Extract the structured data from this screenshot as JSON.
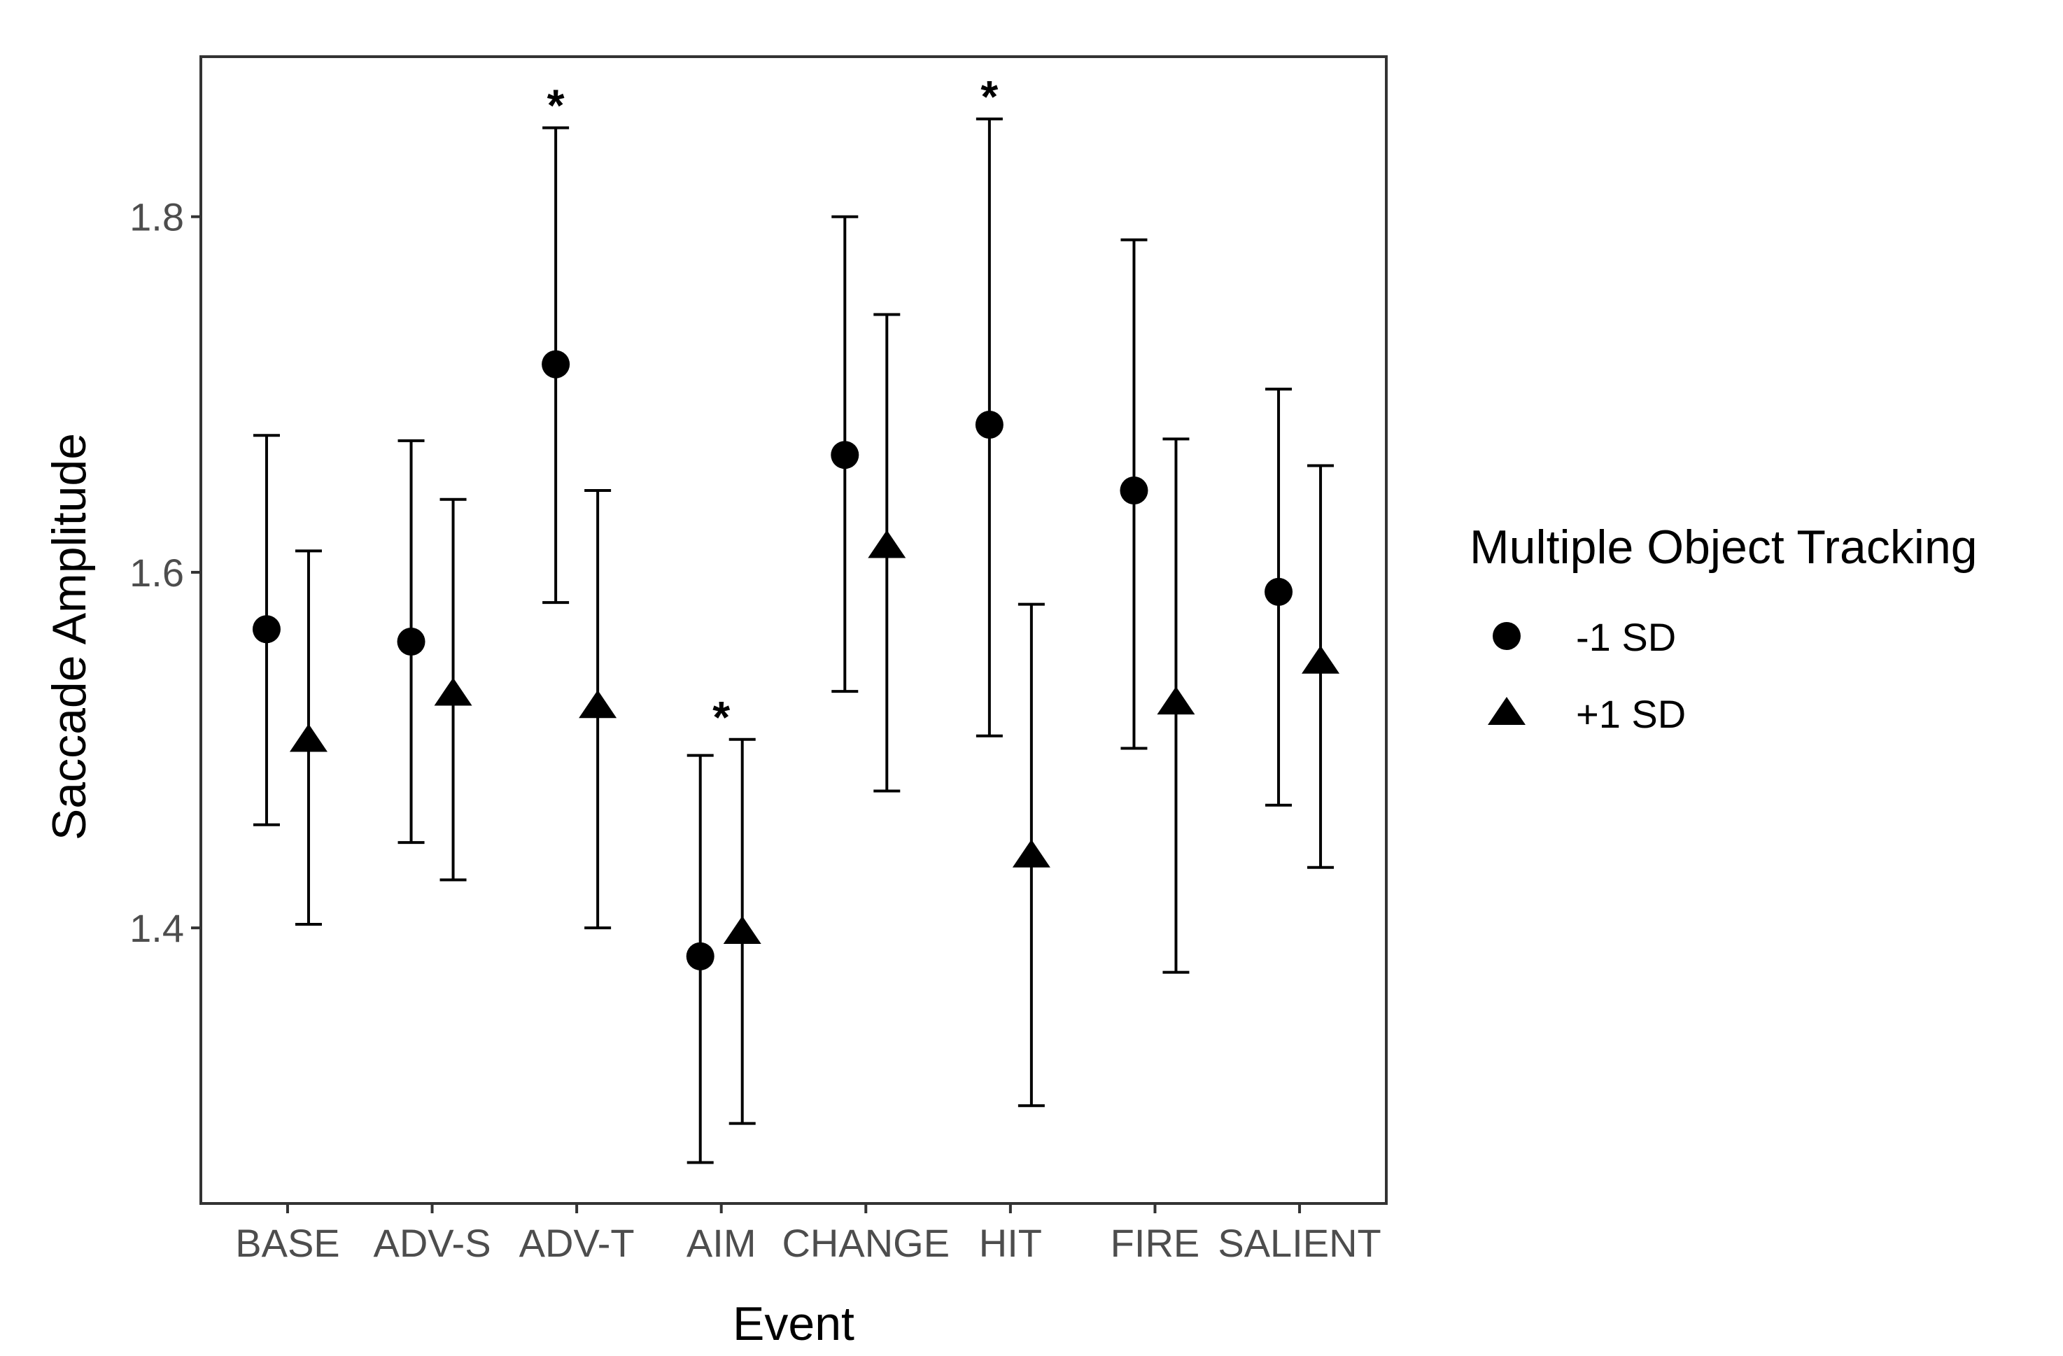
{
  "chart_data": {
    "type": "scatter",
    "subtype": "point-range (mean with error bars)",
    "xlabel": "Event",
    "ylabel": "Saccade Amplitude",
    "categories": [
      "BASE",
      "ADV-S",
      "ADV-T",
      "AIM",
      "CHANGE",
      "HIT",
      "FIRE",
      "SALIENT"
    ],
    "ylim": [
      1.245,
      1.89
    ],
    "yticks": [
      1.4,
      1.6,
      1.8
    ],
    "grid": false,
    "legend": {
      "title": "Multiple Object Tracking",
      "position": "right",
      "entries": [
        {
          "label": "-1 SD",
          "shape": "circle"
        },
        {
          "label": "+1 SD",
          "shape": "triangle"
        }
      ]
    },
    "series": [
      {
        "name": "-1 SD",
        "shape": "circle",
        "values": [
          1.568,
          1.561,
          1.717,
          1.384,
          1.666,
          1.683,
          1.646,
          1.589
        ],
        "lower": [
          1.458,
          1.448,
          1.583,
          1.268,
          1.533,
          1.508,
          1.501,
          1.469
        ],
        "upper": [
          1.677,
          1.674,
          1.85,
          1.497,
          1.8,
          1.855,
          1.787,
          1.703
        ]
      },
      {
        "name": "+1 SD",
        "shape": "triangle",
        "values": [
          1.505,
          1.531,
          1.524,
          1.397,
          1.614,
          1.44,
          1.526,
          1.549
        ],
        "lower": [
          1.402,
          1.427,
          1.4,
          1.29,
          1.477,
          1.3,
          1.375,
          1.434
        ],
        "upper": [
          1.612,
          1.641,
          1.646,
          1.506,
          1.745,
          1.582,
          1.675,
          1.66
        ]
      }
    ],
    "annotations": [
      {
        "category": "ADV-T",
        "series": "-1 SD",
        "text": "*"
      },
      {
        "category": "AIM",
        "series": "both",
        "text": "*"
      },
      {
        "category": "HIT",
        "series": "-1 SD",
        "text": "*"
      }
    ]
  }
}
